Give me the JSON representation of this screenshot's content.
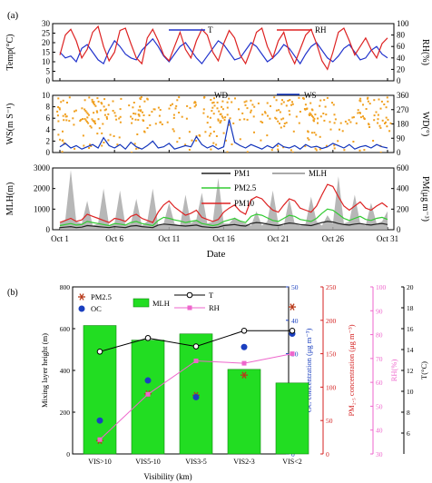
{
  "chart_data": [
    {
      "panel_label": "(a)",
      "type": "line",
      "x_ticks": [
        "Oct 1",
        "Oct 6",
        "Oct 11",
        "Oct 16",
        "Oct 21",
        "Oct 26",
        "Oct 31"
      ],
      "xlabel": "Date",
      "subplots": [
        {
          "ylabel_left": "Temp(°C)",
          "ylabel_right": "RH(%)",
          "ylim_left": [
            0,
            30
          ],
          "ylim_right": [
            0,
            100
          ],
          "yticks_left": [
            "0",
            "5",
            "10",
            "15",
            "20",
            "25",
            "30"
          ],
          "yticks_right": [
            "0",
            "20",
            "40",
            "60",
            "80",
            "100"
          ],
          "series": [
            {
              "name": "T",
              "axis": "left",
              "color": "#2233cc",
              "values": [
                15,
                12,
                13,
                10,
                17,
                19,
                15,
                11,
                9,
                16,
                21,
                18,
                14,
                12,
                11,
                16,
                19,
                22,
                18,
                13,
                10,
                14,
                18,
                20,
                16,
                12,
                9,
                13,
                17,
                21,
                19,
                15,
                11,
                12,
                16,
                20,
                18,
                14,
                10,
                12,
                15,
                19,
                17,
                13,
                9,
                14,
                18,
                20,
                16,
                12,
                10,
                13,
                17,
                19,
                15,
                11,
                12,
                16,
                18,
                14,
                12
              ]
            },
            {
              "name": "RH",
              "axis": "right",
              "color": "#dd2222",
              "values": [
                45,
                80,
                90,
                70,
                40,
                55,
                85,
                95,
                60,
                35,
                50,
                88,
                92,
                65,
                40,
                30,
                75,
                90,
                70,
                45,
                35,
                60,
                85,
                55,
                40,
                70,
                90,
                80,
                50,
                35,
                65,
                88,
                75,
                45,
                30,
                55,
                85,
                92,
                60,
                40,
                70,
                85,
                50,
                30,
                55,
                80,
                90,
                65,
                35,
                20,
                50,
                85,
                92,
                70,
                45,
                60,
                75,
                55,
                40,
                65,
                75
              ]
            }
          ]
        },
        {
          "ylabel_left": "WS(m S⁻¹)",
          "ylabel_right": "WD(°)",
          "ylim_left": [
            0,
            10
          ],
          "ylim_right": [
            0,
            360
          ],
          "yticks_left": [
            "0",
            "2",
            "4",
            "6",
            "8",
            "10"
          ],
          "yticks_right": [
            "0",
            "90",
            "180",
            "270",
            "360"
          ],
          "series": [
            {
              "name": "WD",
              "axis": "right",
              "color": "#f0a020",
              "marker": "dot"
            },
            {
              "name": "WS",
              "axis": "left",
              "color": "#1133bb",
              "values": [
                1.0,
                1.6,
                0.8,
                1.2,
                0.6,
                1.0,
                1.4,
                0.8,
                2.6,
                1.2,
                0.8,
                1.4,
                0.6,
                1.8,
                1.0,
                0.6,
                1.2,
                2.0,
                0.8,
                1.0,
                1.6,
                0.6,
                0.9,
                1.2,
                1.0,
                2.8,
                1.4,
                0.8,
                1.2,
                0.6,
                1.0,
                5.8,
                1.8,
                1.2,
                0.8,
                1.4,
                1.0,
                0.6,
                1.2,
                0.8,
                1.6,
                1.0,
                0.8,
                1.2,
                0.6,
                1.4,
                0.9,
                1.1,
                0.7,
                1.0,
                1.6,
                1.2,
                0.8,
                1.4,
                0.6,
                1.0,
                1.2,
                0.8,
                1.4,
                1.0,
                0.8
              ]
            }
          ]
        },
        {
          "ylabel_left": "MLH(m)",
          "ylabel_right": "PM(μg m⁻³)",
          "ylim_left": [
            0,
            3000
          ],
          "ylim_right": [
            0,
            600
          ],
          "yticks_left": [
            "0",
            "1000",
            "2000",
            "3000"
          ],
          "yticks_right": [
            "0",
            "200",
            "400",
            "600"
          ],
          "series": [
            {
              "name": "MLH",
              "axis": "left",
              "color": "#aaaaaa",
              "style": "area",
              "values": [
                300,
                500,
                2900,
                400,
                300,
                1400,
                200,
                300,
                2000,
                200,
                300,
                1900,
                200,
                300,
                1500,
                200,
                400,
                2000,
                200,
                300,
                1300,
                300,
                200,
                1700,
                300,
                500,
                1800,
                300,
                400,
                2500,
                300,
                300,
                600,
                400,
                300,
                200,
                900,
                200,
                400,
                1900,
                300,
                200,
                1500,
                300,
                200,
                300,
                1600,
                400,
                200,
                700,
                300,
                2600,
                300,
                400,
                1700,
                300,
                200,
                1300,
                300,
                400,
                900
              ]
            },
            {
              "name": "PM1",
              "axis": "right",
              "color": "#222222",
              "values": [
                20,
                25,
                30,
                20,
                25,
                40,
                35,
                30,
                25,
                20,
                30,
                25,
                20,
                35,
                40,
                30,
                25,
                20,
                45,
                55,
                50,
                45,
                40,
                35,
                40,
                45,
                30,
                25,
                20,
                25,
                40,
                45,
                50,
                40,
                35,
                60,
                70,
                65,
                55,
                45,
                40,
                55,
                65,
                60,
                50,
                45,
                40,
                55,
                70,
                80,
                75,
                60,
                50,
                45,
                55,
                60,
                50,
                45,
                55,
                60,
                50
              ]
            },
            {
              "name": "PM2.5",
              "axis": "right",
              "color": "#33cc33",
              "values": [
                40,
                50,
                60,
                45,
                50,
                80,
                70,
                60,
                50,
                40,
                60,
                55,
                45,
                70,
                80,
                60,
                50,
                40,
                90,
                120,
                110,
                95,
                85,
                70,
                80,
                90,
                60,
                50,
                40,
                50,
                80,
                95,
                110,
                85,
                70,
                130,
                150,
                140,
                115,
                90,
                80,
                110,
                140,
                130,
                100,
                90,
                80,
                110,
                160,
                200,
                190,
                150,
                110,
                90,
                110,
                130,
                100,
                90,
                110,
                120,
                100
              ]
            },
            {
              "name": "PM10",
              "axis": "right",
              "color": "#dd2222",
              "values": [
                70,
                90,
                110,
                80,
                95,
                150,
                130,
                110,
                90,
                70,
                110,
                100,
                80,
                130,
                150,
                110,
                90,
                70,
                170,
                240,
                280,
                220,
                180,
                140,
                160,
                190,
                120,
                100,
                80,
                100,
                170,
                210,
                240,
                180,
                150,
                290,
                320,
                300,
                240,
                190,
                170,
                240,
                300,
                280,
                210,
                190,
                170,
                230,
                340,
                440,
                420,
                320,
                230,
                190,
                230,
                270,
                210,
                190,
                230,
                260,
                220
              ]
            }
          ]
        }
      ]
    },
    {
      "panel_label": "(b)",
      "type": "bar",
      "categories": [
        "VIS>10",
        "VIS5-10",
        "VIS3-5",
        "VIS2-3",
        "VIS<2"
      ],
      "xlabel": "Visibility (km)",
      "axes": [
        {
          "id": "mlh",
          "label": "Mixing layer height (m)",
          "ylim": [
            0,
            800
          ],
          "ticks": [
            "0",
            "200",
            "400",
            "600",
            "800"
          ],
          "color": "#000000"
        },
        {
          "id": "oc",
          "label": "OC concentration (μg m⁻³)",
          "ylim": [
            0,
            50
          ],
          "ticks": [
            "0",
            "10",
            "20",
            "30",
            "40",
            "50"
          ],
          "color": "#1a3fbf"
        },
        {
          "id": "pm",
          "label": "PM₂.₅ concentration (μg m⁻³)",
          "ylim": [
            0,
            250
          ],
          "ticks": [
            "0",
            "50",
            "100",
            "150",
            "200",
            "250"
          ],
          "color": "#d42020"
        },
        {
          "id": "rh",
          "label": "RH(%)",
          "ylim": [
            30,
            100
          ],
          "ticks": [
            "30",
            "40",
            "50",
            "60",
            "70",
            "80",
            "90",
            "100"
          ],
          "color": "#ee66cc"
        },
        {
          "id": "t",
          "label": "T(°C)",
          "ylim": [
            4,
            20
          ],
          "ticks": [
            "6",
            "8",
            "10",
            "12",
            "14",
            "16",
            "18",
            "20"
          ],
          "color": "#000000"
        }
      ],
      "series": [
        {
          "name": "MLH",
          "axis": "mlh",
          "kind": "bar",
          "color": "#22dd22",
          "values": [
            615,
            545,
            575,
            405,
            340
          ]
        },
        {
          "name": "PM2.5",
          "axis": "pm",
          "kind": "marker",
          "marker": "star",
          "color": "#b83a1a",
          "values": [
            20,
            90,
            88,
            118,
            220
          ]
        },
        {
          "name": "OC",
          "axis": "oc",
          "kind": "marker",
          "marker": "circle",
          "color": "#1a3fbf",
          "values": [
            10,
            22,
            17,
            32,
            36
          ]
        },
        {
          "name": "T",
          "axis": "t",
          "kind": "line",
          "marker": "open-circle",
          "color": "#000000",
          "values": [
            13.8,
            15.1,
            14.3,
            15.8,
            15.8
          ]
        },
        {
          "name": "RH",
          "axis": "rh",
          "kind": "line",
          "marker": "square",
          "color": "#ee66cc",
          "values": [
            36,
            55,
            69,
            68,
            72
          ]
        }
      ]
    }
  ]
}
